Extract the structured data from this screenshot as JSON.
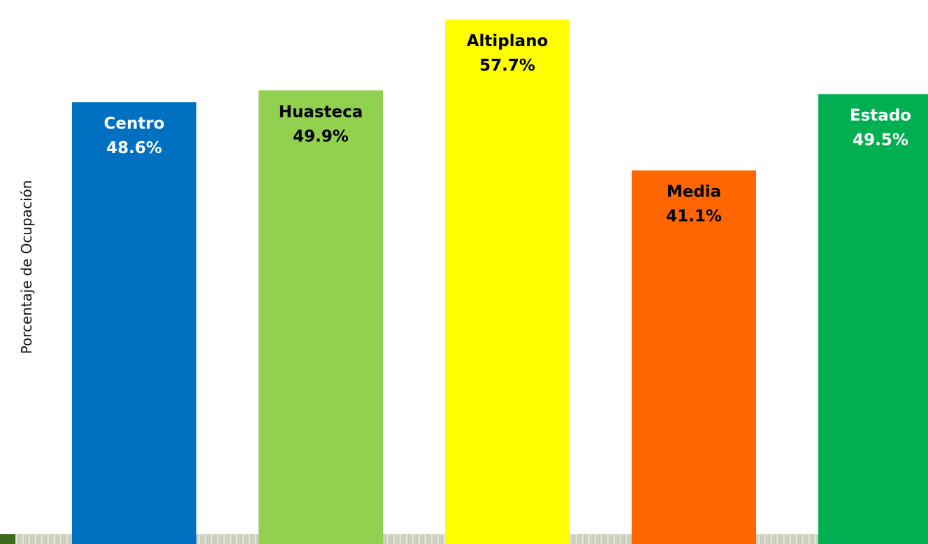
{
  "chart_data": {
    "type": "bar",
    "title": "",
    "xlabel": "",
    "ylabel": "Porcentaje  de Ocupación",
    "ylim": [
      0,
      60
    ],
    "grid": false,
    "categories": [
      "Centro",
      "Huasteca",
      "Altiplano",
      "Media",
      "Estado"
    ],
    "values": [
      48.6,
      49.9,
      57.7,
      41.1,
      49.5
    ],
    "value_labels": [
      "48.6%",
      "49.9%",
      "57.7%",
      "41.1%",
      "49.5%"
    ],
    "colors": [
      "#0070c0",
      "#92d050",
      "#ffff00",
      "#ff6600",
      "#00b050"
    ],
    "label_colors": [
      "#ffffff",
      "#000000",
      "#000000",
      "#000000",
      "#ffffff"
    ]
  }
}
